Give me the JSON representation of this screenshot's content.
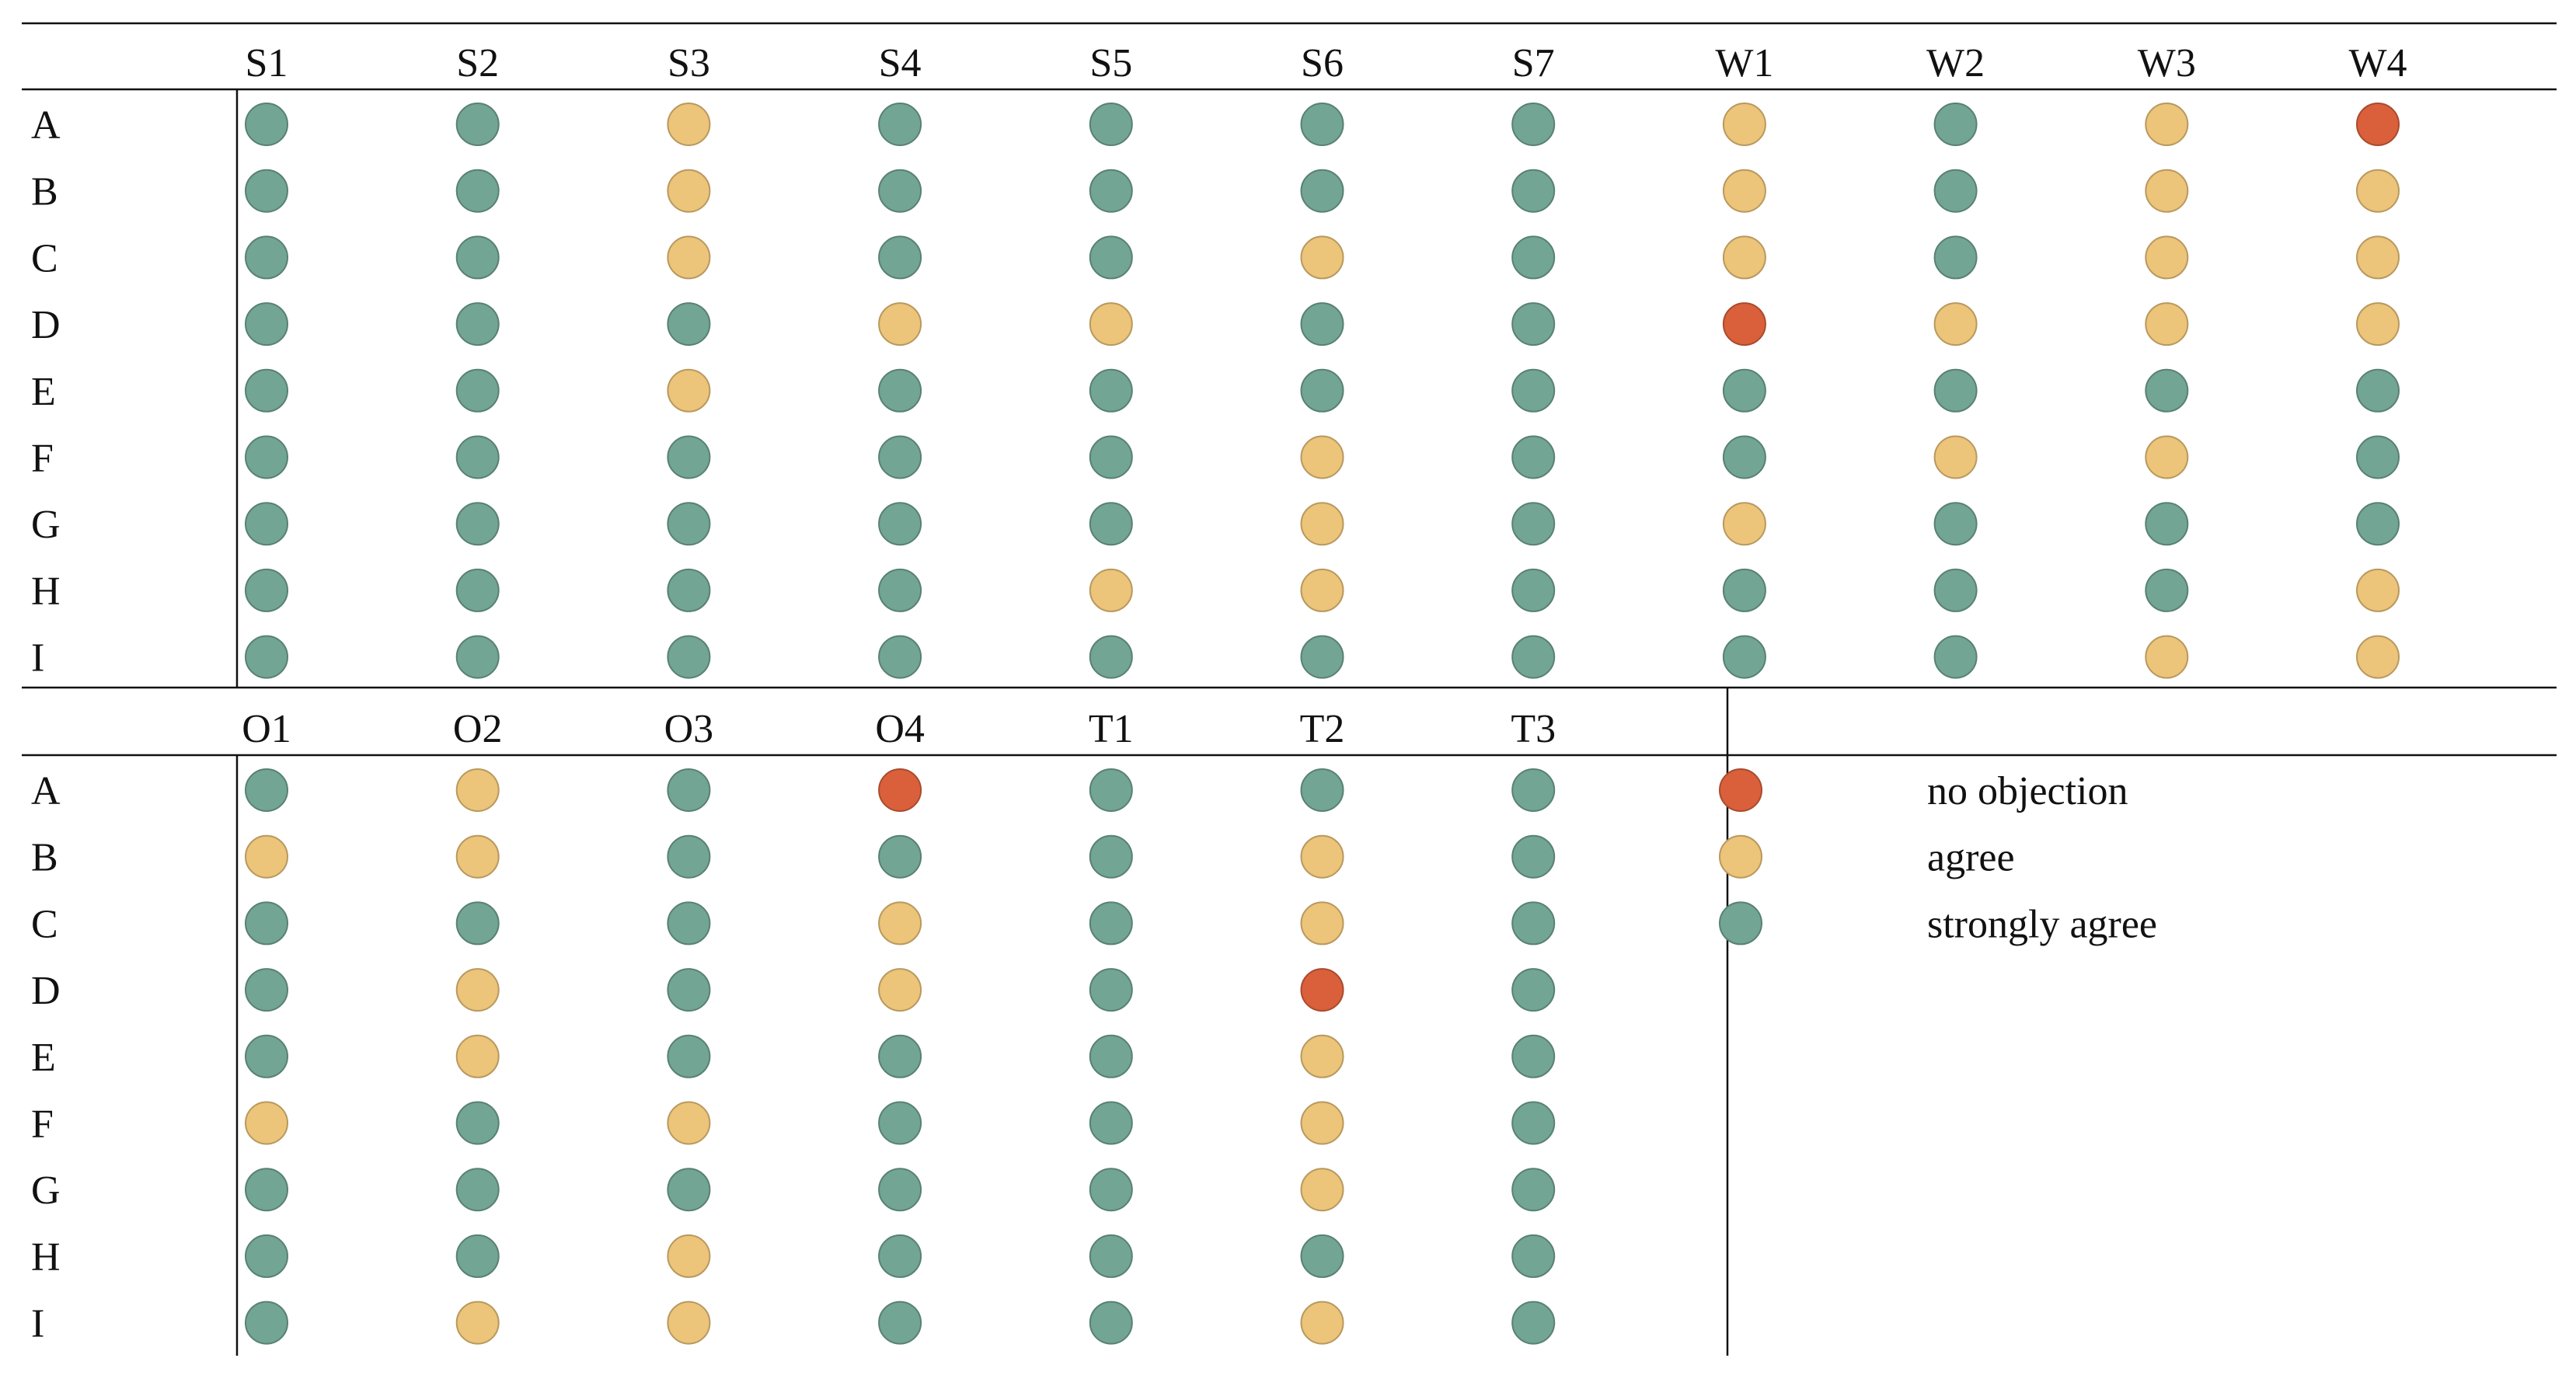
{
  "chart_data": {
    "type": "dot-matrix",
    "title": "",
    "rows": [
      "A",
      "B",
      "C",
      "D",
      "E",
      "F",
      "G",
      "H",
      "I"
    ],
    "levels": {
      "N": {
        "label": "no objection",
        "color": "#d9603b"
      },
      "A": {
        "label": "agree",
        "color": "#ecc47a"
      },
      "S": {
        "label": "strongly agree",
        "color": "#72a594"
      }
    },
    "legend_order": [
      "N",
      "A",
      "S"
    ],
    "panels": [
      {
        "columns": [
          "S1",
          "S2",
          "S3",
          "S4",
          "S5",
          "S6",
          "S7",
          "W1",
          "W2",
          "W3",
          "W4"
        ],
        "values": [
          [
            "S",
            "S",
            "A",
            "S",
            "S",
            "S",
            "S",
            "A",
            "S",
            "A",
            "N"
          ],
          [
            "S",
            "S",
            "A",
            "S",
            "S",
            "S",
            "S",
            "A",
            "S",
            "A",
            "A"
          ],
          [
            "S",
            "S",
            "A",
            "S",
            "S",
            "A",
            "S",
            "A",
            "S",
            "A",
            "A"
          ],
          [
            "S",
            "S",
            "S",
            "A",
            "A",
            "S",
            "S",
            "N",
            "A",
            "A",
            "A"
          ],
          [
            "S",
            "S",
            "A",
            "S",
            "S",
            "S",
            "S",
            "S",
            "S",
            "S",
            "S"
          ],
          [
            "S",
            "S",
            "S",
            "S",
            "S",
            "A",
            "S",
            "S",
            "A",
            "A",
            "S"
          ],
          [
            "S",
            "S",
            "S",
            "S",
            "S",
            "A",
            "S",
            "A",
            "S",
            "S",
            "S"
          ],
          [
            "S",
            "S",
            "S",
            "S",
            "A",
            "A",
            "S",
            "S",
            "S",
            "S",
            "A"
          ],
          [
            "S",
            "S",
            "S",
            "S",
            "S",
            "S",
            "S",
            "S",
            "S",
            "A",
            "A"
          ]
        ]
      },
      {
        "columns": [
          "O1",
          "O2",
          "O3",
          "O4",
          "T1",
          "T2",
          "T3"
        ],
        "values": [
          [
            "S",
            "A",
            "S",
            "N",
            "S",
            "S",
            "S"
          ],
          [
            "A",
            "A",
            "S",
            "S",
            "S",
            "A",
            "S"
          ],
          [
            "S",
            "S",
            "S",
            "A",
            "S",
            "A",
            "S"
          ],
          [
            "S",
            "A",
            "S",
            "A",
            "S",
            "N",
            "S"
          ],
          [
            "S",
            "A",
            "S",
            "S",
            "S",
            "A",
            "S"
          ],
          [
            "A",
            "S",
            "A",
            "S",
            "S",
            "A",
            "S"
          ],
          [
            "S",
            "S",
            "S",
            "S",
            "S",
            "A",
            "S"
          ],
          [
            "S",
            "S",
            "A",
            "S",
            "S",
            "S",
            "S"
          ],
          [
            "S",
            "A",
            "A",
            "S",
            "S",
            "A",
            "S"
          ]
        ]
      }
    ]
  }
}
